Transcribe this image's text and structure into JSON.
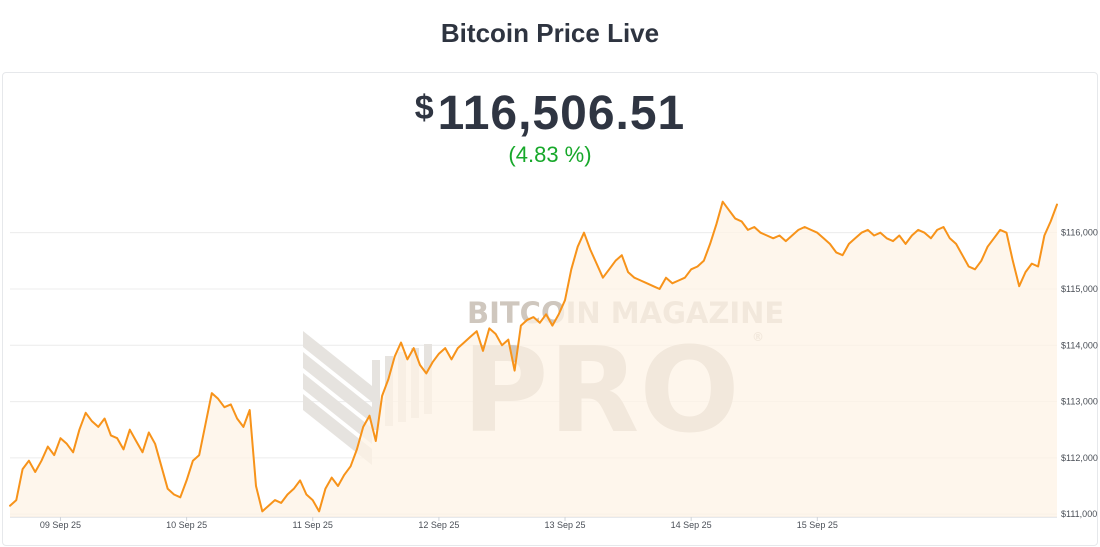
{
  "title": "Bitcoin Price Live",
  "price": {
    "currency": "$",
    "value": "116,506.51",
    "change": "(4.83 %)"
  },
  "watermark": {
    "line1": "BITCOIN MAGAZINE",
    "line2": "PRO",
    "mark": "®"
  },
  "colors": {
    "line": "#f7931a",
    "area": "#fdf3e6",
    "change_up": "#17a82a",
    "text": "#2e3440"
  },
  "chart_data": {
    "type": "area",
    "x_tick_labels": [
      "09 Sep 25",
      "10 Sep 25",
      "11 Sep 25",
      "12 Sep 25",
      "13 Sep 25",
      "14 Sep 25",
      "15 Sep 25"
    ],
    "y_tick_labels": [
      "$111,000",
      "$112,000",
      "$113,000",
      "$114,000",
      "$115,000",
      "$116,000"
    ],
    "ylim": [
      110950,
      116900
    ],
    "grid": true,
    "series": [
      {
        "values": [
          [
            8.6,
            111150
          ],
          [
            8.65,
            111250
          ],
          [
            8.7,
            111800
          ],
          [
            8.75,
            111950
          ],
          [
            8.8,
            111750
          ],
          [
            8.85,
            111950
          ],
          [
            8.9,
            112200
          ],
          [
            8.95,
            112050
          ],
          [
            9.0,
            112350
          ],
          [
            9.05,
            112250
          ],
          [
            9.1,
            112100
          ],
          [
            9.15,
            112500
          ],
          [
            9.2,
            112800
          ],
          [
            9.25,
            112650
          ],
          [
            9.3,
            112550
          ],
          [
            9.35,
            112700
          ],
          [
            9.4,
            112400
          ],
          [
            9.45,
            112350
          ],
          [
            9.5,
            112150
          ],
          [
            9.55,
            112500
          ],
          [
            9.6,
            112300
          ],
          [
            9.65,
            112100
          ],
          [
            9.7,
            112450
          ],
          [
            9.75,
            112250
          ],
          [
            9.8,
            111850
          ],
          [
            9.85,
            111450
          ],
          [
            9.9,
            111350
          ],
          [
            9.95,
            111300
          ],
          [
            10.0,
            111600
          ],
          [
            10.05,
            111950
          ],
          [
            10.1,
            112050
          ],
          [
            10.15,
            112600
          ],
          [
            10.2,
            113150
          ],
          [
            10.25,
            113050
          ],
          [
            10.3,
            112900
          ],
          [
            10.35,
            112950
          ],
          [
            10.4,
            112700
          ],
          [
            10.45,
            112550
          ],
          [
            10.5,
            112850
          ],
          [
            10.55,
            111500
          ],
          [
            10.6,
            111050
          ],
          [
            10.65,
            111150
          ],
          [
            10.7,
            111250
          ],
          [
            10.75,
            111200
          ],
          [
            10.8,
            111350
          ],
          [
            10.85,
            111450
          ],
          [
            10.9,
            111600
          ],
          [
            10.95,
            111350
          ],
          [
            11.0,
            111250
          ],
          [
            11.05,
            111050
          ],
          [
            11.1,
            111450
          ],
          [
            11.15,
            111650
          ],
          [
            11.2,
            111500
          ],
          [
            11.25,
            111700
          ],
          [
            11.3,
            111850
          ],
          [
            11.35,
            112150
          ],
          [
            11.4,
            112550
          ],
          [
            11.45,
            112750
          ],
          [
            11.5,
            112300
          ],
          [
            11.55,
            113100
          ],
          [
            11.6,
            113400
          ],
          [
            11.65,
            113800
          ],
          [
            11.7,
            114050
          ],
          [
            11.75,
            113750
          ],
          [
            11.8,
            113950
          ],
          [
            11.85,
            113650
          ],
          [
            11.9,
            113500
          ],
          [
            11.95,
            113700
          ],
          [
            12.0,
            113850
          ],
          [
            12.05,
            113950
          ],
          [
            12.1,
            113750
          ],
          [
            12.15,
            113950
          ],
          [
            12.2,
            114050
          ],
          [
            12.25,
            114150
          ],
          [
            12.3,
            114250
          ],
          [
            12.35,
            113900
          ],
          [
            12.4,
            114300
          ],
          [
            12.45,
            114200
          ],
          [
            12.5,
            114000
          ],
          [
            12.55,
            114100
          ],
          [
            12.6,
            113550
          ],
          [
            12.65,
            114350
          ],
          [
            12.7,
            114450
          ],
          [
            12.75,
            114500
          ],
          [
            12.8,
            114400
          ],
          [
            12.85,
            114550
          ],
          [
            12.9,
            114350
          ],
          [
            12.95,
            114550
          ],
          [
            13.0,
            114800
          ],
          [
            13.05,
            115350
          ],
          [
            13.1,
            115750
          ],
          [
            13.15,
            116000
          ],
          [
            13.2,
            115700
          ],
          [
            13.25,
            115450
          ],
          [
            13.3,
            115200
          ],
          [
            13.35,
            115350
          ],
          [
            13.4,
            115500
          ],
          [
            13.45,
            115600
          ],
          [
            13.5,
            115300
          ],
          [
            13.55,
            115200
          ],
          [
            13.6,
            115150
          ],
          [
            13.65,
            115100
          ],
          [
            13.7,
            115050
          ],
          [
            13.75,
            115000
          ],
          [
            13.8,
            115200
          ],
          [
            13.85,
            115100
          ],
          [
            13.9,
            115150
          ],
          [
            13.95,
            115200
          ],
          [
            14.0,
            115350
          ],
          [
            14.05,
            115400
          ],
          [
            14.1,
            115500
          ],
          [
            14.15,
            115800
          ],
          [
            14.2,
            116150
          ],
          [
            14.25,
            116550
          ],
          [
            14.3,
            116400
          ],
          [
            14.35,
            116250
          ],
          [
            14.4,
            116200
          ],
          [
            14.45,
            116050
          ],
          [
            14.5,
            116100
          ],
          [
            14.55,
            116000
          ],
          [
            14.6,
            115950
          ],
          [
            14.65,
            115900
          ],
          [
            14.7,
            115950
          ],
          [
            14.75,
            115850
          ],
          [
            14.8,
            115950
          ],
          [
            14.85,
            116050
          ],
          [
            14.9,
            116100
          ],
          [
            14.95,
            116050
          ],
          [
            15.0,
            116000
          ],
          [
            15.05,
            115900
          ],
          [
            15.1,
            115800
          ],
          [
            15.15,
            115650
          ],
          [
            15.2,
            115600
          ],
          [
            15.25,
            115800
          ],
          [
            15.3,
            115900
          ],
          [
            15.35,
            116000
          ],
          [
            15.4,
            116050
          ],
          [
            15.45,
            115950
          ],
          [
            15.5,
            116000
          ],
          [
            15.55,
            115900
          ],
          [
            15.6,
            115850
          ],
          [
            15.65,
            115950
          ],
          [
            15.7,
            115800
          ],
          [
            15.75,
            115950
          ],
          [
            15.8,
            116050
          ],
          [
            15.85,
            116000
          ],
          [
            15.9,
            115900
          ],
          [
            15.95,
            116050
          ],
          [
            16.0,
            116100
          ],
          [
            16.05,
            115900
          ],
          [
            16.1,
            115800
          ],
          [
            16.15,
            115600
          ],
          [
            16.2,
            115400
          ],
          [
            16.25,
            115350
          ],
          [
            16.3,
            115500
          ],
          [
            16.35,
            115750
          ],
          [
            16.4,
            115900
          ],
          [
            16.45,
            116050
          ],
          [
            16.5,
            116000
          ],
          [
            16.55,
            115500
          ],
          [
            16.6,
            115050
          ],
          [
            16.65,
            115300
          ],
          [
            16.7,
            115450
          ],
          [
            16.75,
            115400
          ],
          [
            16.8,
            115950
          ],
          [
            16.85,
            116200
          ],
          [
            16.9,
            116500
          ]
        ]
      }
    ]
  }
}
